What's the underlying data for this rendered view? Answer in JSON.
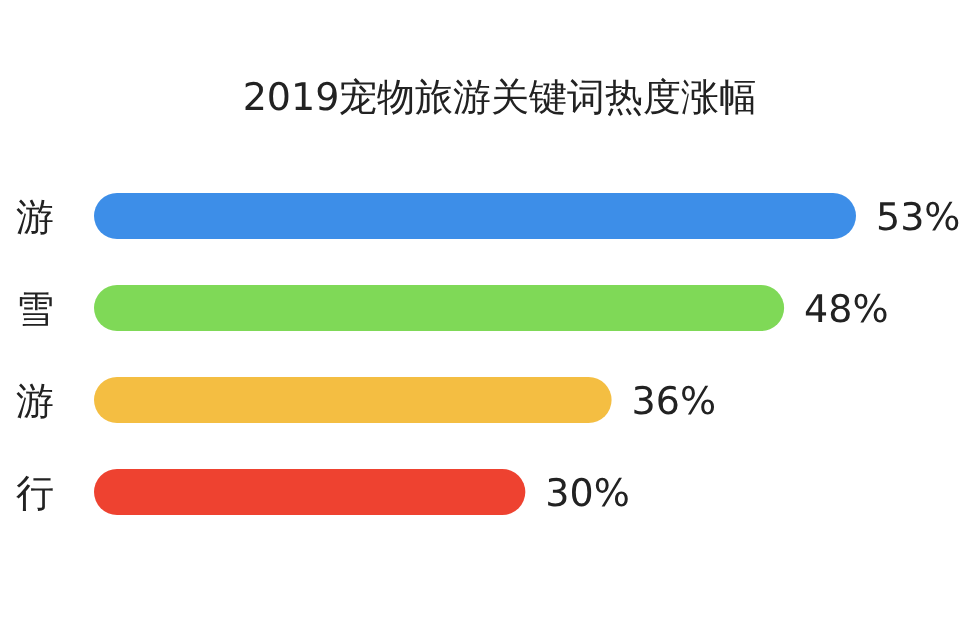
{
  "chart_data": {
    "type": "bar",
    "orientation": "horizontal",
    "title": "2019宠物旅游关键词热度涨幅",
    "categories": [
      "游",
      "雪",
      "游",
      "行"
    ],
    "values": [
      53,
      48,
      36,
      30
    ],
    "colors": [
      "#3d8ee8",
      "#7fd957",
      "#f4be42",
      "#ee4230"
    ],
    "value_labels": [
      "53%",
      "48%",
      "36%",
      "30%"
    ]
  }
}
